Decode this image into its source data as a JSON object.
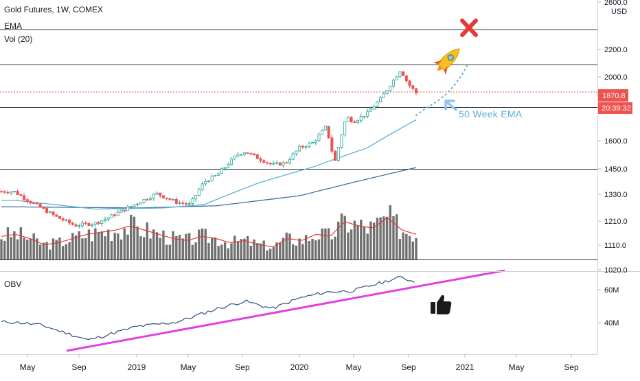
{
  "header": {
    "title": "Gold Futures, 1W, COMEX",
    "ema_label": "EMA",
    "vol_label": "Vol (20)",
    "obv_label": "OBV"
  },
  "price_axis": {
    "currency": "USD",
    "ticks": [
      "2600.0",
      "2200.0",
      "2000.0",
      "1600.0",
      "1450.0",
      "1330.0",
      "1210.0",
      "1110.0",
      "1020.0"
    ],
    "last_price": "1870.8",
    "countdown": "20:39:32"
  },
  "obv_axis": {
    "ticks": [
      "60M",
      "40M"
    ]
  },
  "time_axis": {
    "labels": [
      "May",
      "Sep",
      "2019",
      "May",
      "Sep",
      "2020",
      "May",
      "Sep",
      "2021",
      "May",
      "Sep"
    ]
  },
  "annotations": {
    "ema_note": "50 Week EMA",
    "rocket_icon": "rocket-icon",
    "cross_icon": "red-x-icon",
    "thumb_icon": "thumbs-up-icon"
  },
  "colors": {
    "up": "#26a69a",
    "down": "#ef5350",
    "ema50": "#5ab0d8",
    "ema200": "#3f6fa5",
    "volume": "#707070",
    "volume_ma": "#e53935",
    "obv": "#2b4d7c",
    "trendline": "#e040e0",
    "annotation": "#5ab0d8"
  },
  "chart_data": {
    "type": "candlestick",
    "title": "Gold Futures, 1W, COMEX",
    "y_scale": "log",
    "ylim": [
      1020,
      2600
    ],
    "levels": [
      2360,
      2085,
      1800,
      1450
    ],
    "price_key_points": [
      [
        "2018-04-01",
        1340
      ],
      [
        "2018-05-01",
        1300
      ],
      [
        "2018-06-01",
        1265
      ],
      [
        "2018-07-01",
        1230
      ],
      [
        "2018-08-15",
        1190
      ],
      [
        "2018-10-01",
        1200
      ],
      [
        "2018-11-01",
        1225
      ],
      [
        "2019-01-01",
        1285
      ],
      [
        "2019-02-15",
        1330
      ],
      [
        "2019-04-01",
        1290
      ],
      [
        "2019-05-01",
        1280
      ],
      [
        "2019-06-01",
        1385
      ],
      [
        "2019-07-01",
        1420
      ],
      [
        "2019-08-15",
        1525
      ],
      [
        "2019-09-01",
        1540
      ],
      [
        "2019-10-01",
        1505
      ],
      [
        "2019-11-01",
        1470
      ],
      [
        "2019-12-01",
        1480
      ],
      [
        "2020-01-01",
        1560
      ],
      [
        "2020-02-01",
        1590
      ],
      [
        "2020-03-01",
        1680
      ],
      [
        "2020-03-20",
        1480
      ],
      [
        "2020-04-15",
        1740
      ],
      [
        "2020-05-01",
        1710
      ],
      [
        "2020-06-01",
        1760
      ],
      [
        "2020-07-01",
        1850
      ],
      [
        "2020-08-01",
        1985
      ],
      [
        "2020-08-15",
        2050
      ],
      [
        "2020-09-01",
        1950
      ],
      [
        "2020-09-25",
        1870.8
      ]
    ],
    "ema50_key_points": [
      [
        "2018-04-01",
        1300
      ],
      [
        "2018-10-01",
        1260
      ],
      [
        "2019-03-01",
        1265
      ],
      [
        "2019-06-01",
        1280
      ],
      [
        "2019-10-01",
        1380
      ],
      [
        "2020-02-01",
        1460
      ],
      [
        "2020-06-01",
        1560
      ],
      [
        "2020-09-25",
        1730
      ]
    ],
    "ema200_key_points": [
      [
        "2018-04-01",
        1270
      ],
      [
        "2019-01-01",
        1265
      ],
      [
        "2019-07-01",
        1275
      ],
      [
        "2020-01-01",
        1320
      ],
      [
        "2020-09-25",
        1460
      ]
    ],
    "volume_relative": [
      0.55,
      0.6,
      0.5,
      0.35,
      0.4,
      0.5,
      0.6,
      0.65,
      0.7,
      0.8,
      0.7,
      0.6,
      0.5,
      0.45,
      0.55,
      0.5,
      0.4,
      0.45,
      0.35,
      0.3,
      0.5,
      0.45,
      0.6,
      0.55,
      0.9,
      0.8,
      0.75,
      1.0,
      0.7,
      0.6
    ],
    "obv_key_points": [
      [
        "2018-04-01",
        38
      ],
      [
        "2018-06-01",
        36
      ],
      [
        "2018-09-15",
        26
      ],
      [
        "2019-01-01",
        35
      ],
      [
        "2019-04-01",
        38
      ],
      [
        "2019-07-01",
        47
      ],
      [
        "2019-09-01",
        52
      ],
      [
        "2019-11-01",
        47
      ],
      [
        "2020-01-01",
        54
      ],
      [
        "2020-03-01",
        58
      ],
      [
        "2020-05-01",
        59
      ],
      [
        "2020-08-15",
        68
      ],
      [
        "2020-09-25",
        64
      ]
    ],
    "obv_ylim": [
      28,
      72
    ],
    "trendline_price_points": [
      [
        "2018-09-01",
        22
      ],
      [
        "2021-05-01",
        66
      ]
    ]
  }
}
